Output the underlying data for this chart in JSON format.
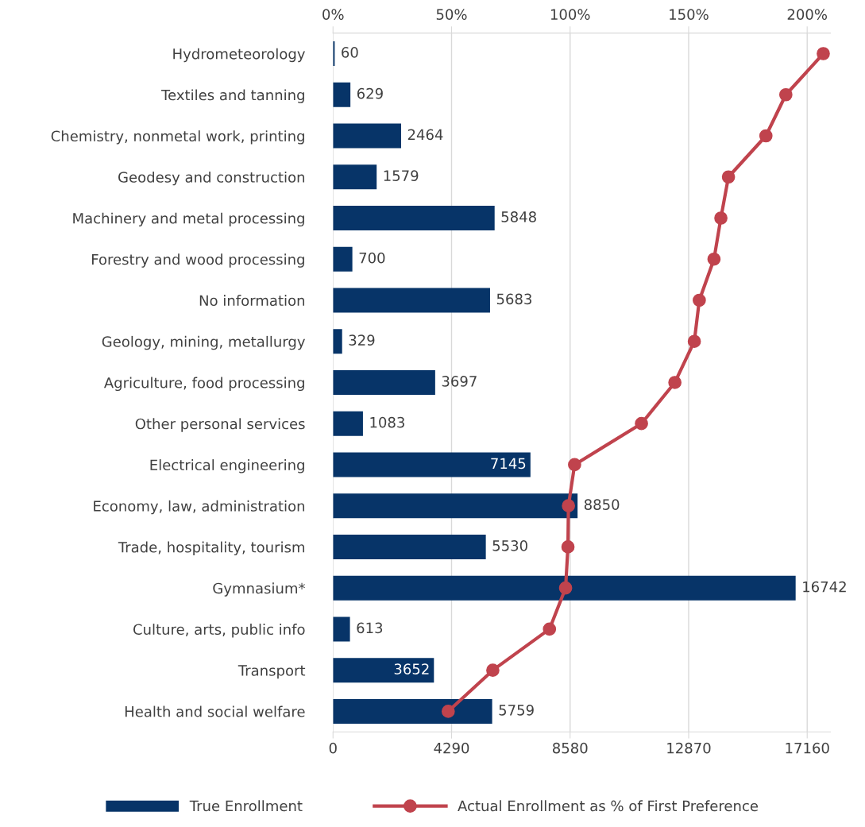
{
  "chart_data": {
    "type": "bar",
    "orientation": "horizontal",
    "categories": [
      "Hydrometeorology",
      "Textiles and tanning",
      "Chemistry, nonmetal work, printing",
      "Geodesy and construction",
      "Machinery and metal processing",
      "Forestry and wood processing",
      "No information",
      "Geology, mining, metallurgy",
      "Agriculture, food processing",
      "Other personal services",
      "Electrical engineering",
      "Economy, law, administration",
      "Trade, hospitality, tourism",
      "Gymnasium*",
      "Culture, arts, public info",
      "Transport",
      "Health and social welfare"
    ],
    "series": [
      {
        "name": "True Enrollment",
        "color": "#073468",
        "values": [
          60,
          629,
          2464,
          1579,
          5848,
          700,
          5683,
          329,
          3697,
          1083,
          7145,
          8850,
          5530,
          16742,
          613,
          3652,
          5759
        ],
        "value_labels": [
          "60",
          "629",
          "2464",
          "1579",
          "5848",
          "700",
          "5683",
          "329",
          "3697",
          "1083",
          "7145",
          "8850",
          "5530",
          "16742",
          "613",
          "3652",
          "5759"
        ]
      },
      {
        "name": "Actual Enrollment as % of First Preference",
        "type": "line",
        "axis": "x2",
        "color": "#c0434d",
        "marker": "circle",
        "line_style": "solid",
        "values": [
          206.8,
          191.0,
          182.6,
          166.8,
          163.6,
          160.7,
          154.5,
          152.4,
          144.2,
          130.1,
          101.9,
          99.3,
          99.1,
          98.1,
          91.3,
          67.4,
          48.6
        ]
      }
    ],
    "xlim": [
      0,
      18000
    ],
    "xticks": [
      0,
      4290,
      8580,
      12870,
      17160
    ],
    "x2lim": [
      0,
      209.8
    ],
    "x2ticks": [
      {
        "value": 0,
        "label": "0%"
      },
      {
        "value": 50,
        "label": "50%"
      },
      {
        "value": 100,
        "label": "100%"
      },
      {
        "value": 150,
        "label": "150%"
      },
      {
        "value": 200,
        "label": "200%"
      }
    ],
    "grid": "x",
    "legend": "bottom"
  }
}
